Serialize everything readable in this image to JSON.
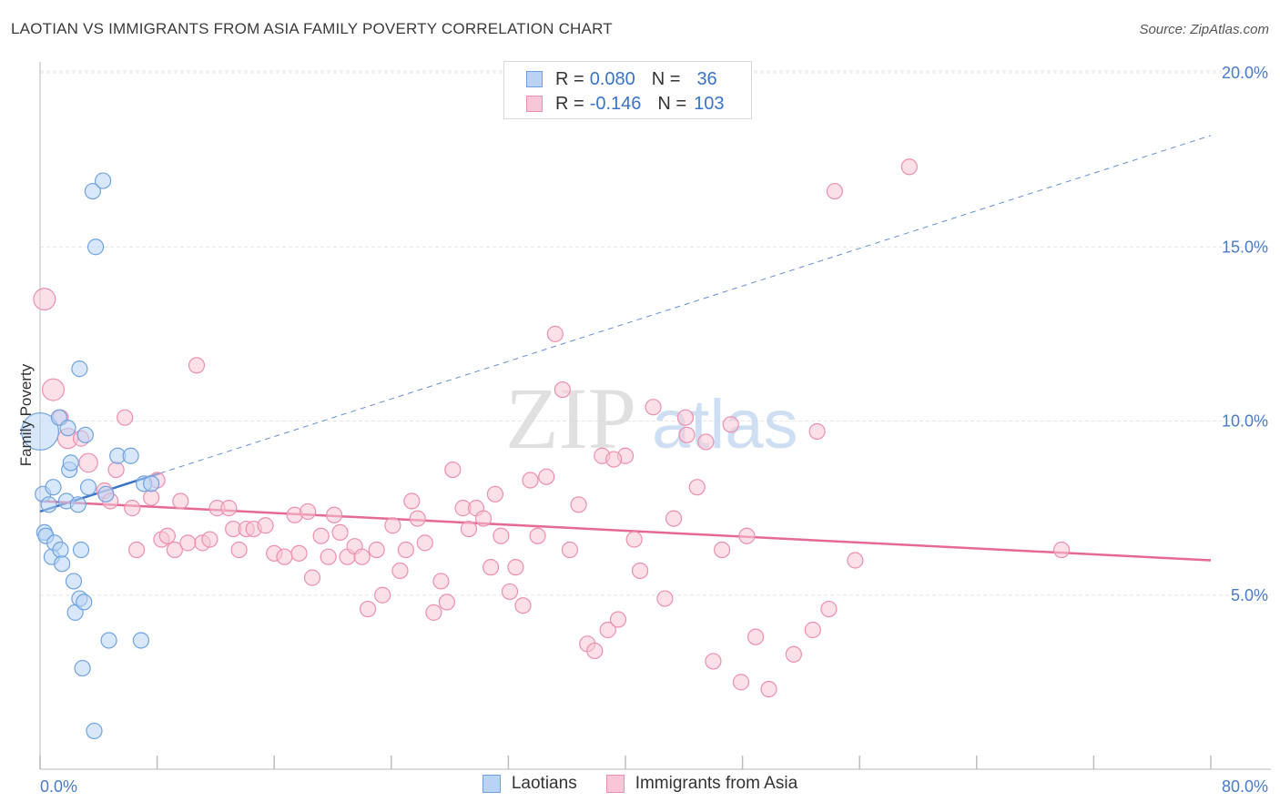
{
  "header": {
    "title": "LAOTIAN VS IMMIGRANTS FROM ASIA FAMILY POVERTY CORRELATION CHART",
    "source": "Source: ZipAtlas.com"
  },
  "colors": {
    "blue_fill": "#b8d3f4",
    "blue_stroke": "#6fa3e0",
    "blue_line": "#3a74c9",
    "pink_fill": "#f8c6d6",
    "pink_stroke": "#ec8fae",
    "pink_line": "#e56a93",
    "tick_text": "#4a7cc7",
    "grid": "#e6e6e6"
  },
  "legend": {
    "rows": [
      {
        "r_label": "R =",
        "r_value": "0.080",
        "n_label": "N =",
        "n_value": "36",
        "series": "Laotians"
      },
      {
        "r_label": "R =",
        "r_value": "-0.146",
        "n_label": "N =",
        "n_value": "103",
        "series": "Immigrants from Asia"
      }
    ]
  },
  "watermark": {
    "zip": "ZIP",
    "atlas": "atlas"
  },
  "chart_data": {
    "type": "scatter",
    "title": "LAOTIAN VS IMMIGRANTS FROM ASIA FAMILY POVERTY CORRELATION CHART",
    "xlabel": "",
    "ylabel": "Family Poverty",
    "xlim": [
      0,
      80
    ],
    "ylim": [
      0,
      21
    ],
    "x_tick_labels": [
      "0.0%",
      "80.0%"
    ],
    "y_ticks": [
      5,
      10,
      15,
      20
    ],
    "y_tick_labels": [
      "5.0%",
      "10.0%",
      "15.0%",
      "20.0%"
    ],
    "grid": true,
    "series": [
      {
        "name": "Laotians",
        "color": "#6fa3e0",
        "trend": {
          "x0": 0,
          "y0": 7.4,
          "x1": 8.2,
          "y1": 8.5,
          "dashed_extension_to": [
            80,
            18.2
          ]
        },
        "points": [
          [
            0.0,
            9.7,
            2.4
          ],
          [
            0.2,
            7.9,
            1
          ],
          [
            0.3,
            6.8,
            1
          ],
          [
            0.4,
            6.7,
            1
          ],
          [
            0.6,
            7.6,
            1
          ],
          [
            0.8,
            6.1,
            1
          ],
          [
            0.9,
            8.1,
            1
          ],
          [
            1.0,
            6.5,
            1
          ],
          [
            1.3,
            10.1,
            1
          ],
          [
            1.4,
            6.3,
            1
          ],
          [
            1.5,
            5.9,
            1
          ],
          [
            1.8,
            7.7,
            1
          ],
          [
            1.9,
            9.8,
            1
          ],
          [
            2.0,
            8.6,
            1
          ],
          [
            2.1,
            8.8,
            1
          ],
          [
            2.3,
            5.4,
            1
          ],
          [
            2.4,
            4.5,
            1
          ],
          [
            2.6,
            7.6,
            1
          ],
          [
            2.7,
            4.9,
            1
          ],
          [
            2.7,
            11.5,
            1
          ],
          [
            2.8,
            6.3,
            1
          ],
          [
            2.9,
            2.9,
            1
          ],
          [
            3.0,
            4.8,
            1
          ],
          [
            3.1,
            9.6,
            1
          ],
          [
            3.3,
            8.1,
            1
          ],
          [
            3.6,
            16.6,
            1
          ],
          [
            3.8,
            15.0,
            1
          ],
          [
            3.7,
            1.1,
            1
          ],
          [
            4.3,
            16.9,
            1
          ],
          [
            4.5,
            7.9,
            1
          ],
          [
            4.7,
            3.7,
            1
          ],
          [
            5.3,
            9.0,
            1
          ],
          [
            6.2,
            9.0,
            1
          ],
          [
            6.9,
            3.7,
            1
          ],
          [
            7.1,
            8.2,
            1
          ],
          [
            7.6,
            8.2,
            1
          ]
        ]
      },
      {
        "name": "Immigrants from Asia",
        "color": "#ec8fae",
        "trend": {
          "x0": 0,
          "y0": 7.7,
          "x1": 80,
          "y1": 6.0
        },
        "points": [
          [
            0.3,
            13.5,
            1.4
          ],
          [
            0.9,
            10.9,
            1.4
          ],
          [
            1.4,
            10.1,
            1
          ],
          [
            1.9,
            9.5,
            1.3
          ],
          [
            2.8,
            9.5,
            1
          ],
          [
            3.3,
            8.8,
            1.2
          ],
          [
            4.4,
            8.0,
            1
          ],
          [
            4.8,
            7.7,
            1
          ],
          [
            5.2,
            8.6,
            1
          ],
          [
            5.8,
            10.1,
            1
          ],
          [
            6.3,
            7.5,
            1
          ],
          [
            6.6,
            6.3,
            1
          ],
          [
            7.6,
            7.8,
            1
          ],
          [
            8.0,
            8.3,
            1
          ],
          [
            8.3,
            6.6,
            1
          ],
          [
            8.7,
            6.7,
            1
          ],
          [
            9.2,
            6.3,
            1
          ],
          [
            9.6,
            7.7,
            1
          ],
          [
            10.1,
            6.5,
            1
          ],
          [
            10.7,
            11.6,
            1
          ],
          [
            11.1,
            6.5,
            1
          ],
          [
            11.6,
            6.6,
            1
          ],
          [
            12.1,
            7.5,
            1
          ],
          [
            12.9,
            7.5,
            1
          ],
          [
            13.2,
            6.9,
            1
          ],
          [
            13.6,
            6.3,
            1
          ],
          [
            14.1,
            6.9,
            1
          ],
          [
            14.6,
            6.9,
            1
          ],
          [
            15.4,
            7.0,
            1
          ],
          [
            16.0,
            6.2,
            1
          ],
          [
            16.7,
            6.1,
            1
          ],
          [
            17.4,
            7.3,
            1
          ],
          [
            17.7,
            6.2,
            1
          ],
          [
            18.3,
            7.4,
            1
          ],
          [
            18.6,
            5.5,
            1
          ],
          [
            19.2,
            6.7,
            1
          ],
          [
            19.7,
            6.1,
            1
          ],
          [
            20.1,
            7.3,
            1
          ],
          [
            20.5,
            6.8,
            1
          ],
          [
            21.0,
            6.1,
            1
          ],
          [
            21.5,
            6.4,
            1
          ],
          [
            22.0,
            6.1,
            1
          ],
          [
            22.4,
            4.6,
            1
          ],
          [
            23.0,
            6.3,
            1
          ],
          [
            23.4,
            5.0,
            1
          ],
          [
            24.1,
            7.0,
            1
          ],
          [
            24.6,
            5.7,
            1
          ],
          [
            25.0,
            6.3,
            1
          ],
          [
            25.4,
            7.7,
            1
          ],
          [
            25.8,
            7.2,
            1
          ],
          [
            26.3,
            6.5,
            1
          ],
          [
            26.9,
            4.5,
            1
          ],
          [
            27.4,
            5.4,
            1
          ],
          [
            27.8,
            4.8,
            1
          ],
          [
            28.2,
            8.6,
            1
          ],
          [
            28.9,
            7.5,
            1
          ],
          [
            29.3,
            6.9,
            1
          ],
          [
            29.8,
            7.5,
            1
          ],
          [
            30.3,
            7.2,
            1
          ],
          [
            30.8,
            5.8,
            1
          ],
          [
            31.1,
            7.9,
            1
          ],
          [
            31.5,
            6.7,
            1
          ],
          [
            32.1,
            5.1,
            1
          ],
          [
            32.5,
            5.8,
            1
          ],
          [
            33.0,
            4.7,
            1
          ],
          [
            33.5,
            8.3,
            1
          ],
          [
            34.0,
            6.7,
            1
          ],
          [
            34.6,
            8.4,
            1
          ],
          [
            35.2,
            12.5,
            1
          ],
          [
            35.7,
            10.9,
            1
          ],
          [
            36.2,
            6.3,
            1
          ],
          [
            36.8,
            7.6,
            1
          ],
          [
            37.4,
            3.6,
            1
          ],
          [
            37.9,
            3.4,
            1
          ],
          [
            38.4,
            9.0,
            1
          ],
          [
            38.8,
            4.0,
            1
          ],
          [
            39.5,
            4.3,
            1
          ],
          [
            40.0,
            9.0,
            1
          ],
          [
            40.6,
            6.6,
            1
          ],
          [
            41.0,
            5.7,
            1
          ],
          [
            41.9,
            10.4,
            1
          ],
          [
            42.7,
            4.9,
            1
          ],
          [
            43.3,
            7.2,
            1
          ],
          [
            44.1,
            10.1,
            1
          ],
          [
            44.9,
            8.1,
            1
          ],
          [
            45.5,
            9.4,
            1
          ],
          [
            46.0,
            3.1,
            1
          ],
          [
            46.6,
            6.3,
            1
          ],
          [
            47.2,
            9.9,
            1
          ],
          [
            47.9,
            2.5,
            1
          ],
          [
            48.3,
            6.7,
            1
          ],
          [
            48.9,
            3.8,
            1
          ],
          [
            49.8,
            2.3,
            1
          ],
          [
            51.5,
            3.3,
            1
          ],
          [
            52.8,
            4.0,
            1
          ],
          [
            53.1,
            9.7,
            1
          ],
          [
            53.9,
            4.6,
            1
          ],
          [
            54.3,
            16.6,
            1
          ],
          [
            55.7,
            6.0,
            1
          ],
          [
            59.4,
            17.3,
            1
          ],
          [
            69.8,
            6.3,
            1
          ],
          [
            39.2,
            8.9,
            1
          ],
          [
            44.2,
            9.6,
            1
          ]
        ]
      }
    ]
  },
  "bottom_legend": [
    {
      "label": "Laotians"
    },
    {
      "label": "Immigrants from Asia"
    }
  ]
}
